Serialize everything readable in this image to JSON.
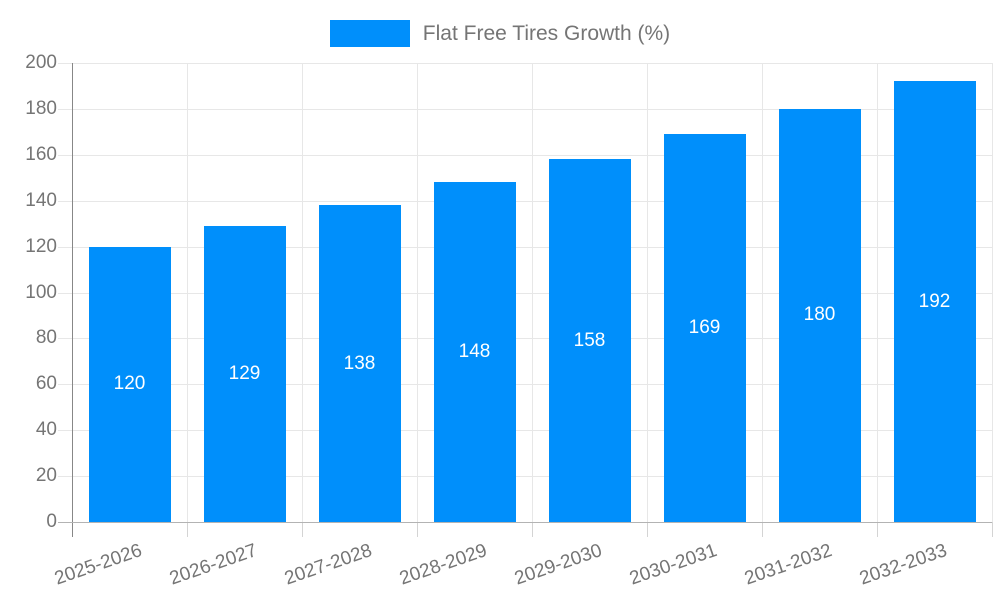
{
  "legend": {
    "label": "Flat Free Tires Growth (%)"
  },
  "chart_data": {
    "type": "bar",
    "title": "",
    "xlabel": "",
    "ylabel": "",
    "legend_position": "top",
    "categories": [
      "2025-2026",
      "2026-2027",
      "2027-2028",
      "2028-2029",
      "2029-2030",
      "2030-2031",
      "2031-2032",
      "2032-2033"
    ],
    "series": [
      {
        "name": "Flat Free Tires Growth (%)",
        "values": [
          120,
          129,
          138,
          148,
          158,
          169,
          180,
          192
        ],
        "color": "#008FFB"
      }
    ],
    "data_labels": {
      "visible": true,
      "color": "#ffffff",
      "position": "center"
    },
    "ylim": [
      0,
      200
    ],
    "ytick_step": 20,
    "yticks": [
      "0",
      "20",
      "40",
      "60",
      "80",
      "100",
      "120",
      "140",
      "160",
      "180",
      "200"
    ],
    "grid": {
      "horizontal": true,
      "vertical": true,
      "color": "#e7e7e7"
    },
    "x_label_rotation_deg": -19,
    "colors": {
      "axis_text": "#757575",
      "axis_line": "#878787",
      "baseline": "#b3b3b3",
      "tick": "#d4d4d4",
      "background": "#ffffff"
    }
  }
}
